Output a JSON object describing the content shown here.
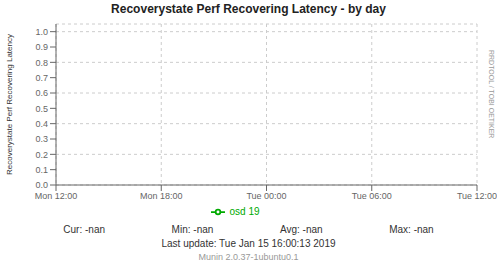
{
  "chart_data": {
    "type": "line",
    "title": "Recoverystate Perf Recovering Latency - by day",
    "y_label": "Recoverystate Perf Recovering Latency",
    "categories": [
      "Mon 12:00",
      "Mon 18:00",
      "Tue 00:00",
      "Tue 06:00",
      "Tue 12:00"
    ],
    "series": [
      {
        "name": "osd 19",
        "color": "#00aa00",
        "values": [
          null,
          null,
          null,
          null,
          null
        ]
      }
    ],
    "ylim": [
      0.0,
      1.05
    ],
    "yticks": [
      {
        "value": 0.0,
        "label": "0.0"
      },
      0.1,
      0.2,
      0.3,
      0.4,
      0.5,
      0.6,
      0.7,
      0.8,
      0.9,
      {
        "value": 1.0,
        "label": "1.0"
      }
    ],
    "grid": true,
    "legend": "bottom",
    "annotations": [
      "Cur:",
      "-nan",
      "Min:",
      "-nan",
      "Avg:",
      "-nan",
      "Max:",
      "-nan",
      "Last update: Tue Jan 15 16:00:13 2019",
      "Munin 2.0.37-1ubuntu0.1",
      "RRDTOOL / TOBI OETIKER"
    ]
  }
}
